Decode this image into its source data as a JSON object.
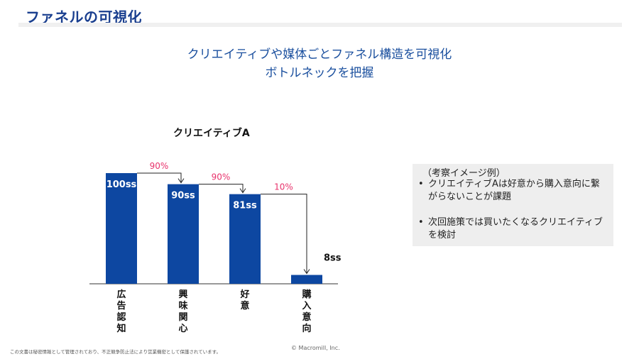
{
  "slide": {
    "title": "ファネルの可視化",
    "headline_line1": "クリエイティブや媒体ごとファネル構造を可視化",
    "headline_line2": "ボトルネックを把握"
  },
  "chart_data": {
    "type": "bar",
    "title": "クリエイティブA",
    "categories": [
      "広告認知",
      "興味関心",
      "好意",
      "購入意向"
    ],
    "values": [
      100,
      90,
      81,
      8
    ],
    "value_labels": [
      "100ss",
      "90ss",
      "81ss",
      "8ss"
    ],
    "transition_rates": [
      "90%",
      "90%",
      "10%"
    ],
    "ylim": [
      0,
      100
    ],
    "grid": false,
    "legend": "none",
    "colors": {
      "bar": "#0d47a1",
      "rate": "#e8336c",
      "connector": "#222222"
    }
  },
  "notes": {
    "heading": "（考察イメージ例）",
    "items": [
      "クリエイティブAは好意から購入意向に繋がらないことが課題",
      "次回施策では買いたくなるクリエイティブを検討"
    ]
  },
  "footer": {
    "confidential": "この文書は秘密情報として管理されており、不正競争防止法により営業機密として保護されています。",
    "copyright": "© Macromill, Inc."
  }
}
